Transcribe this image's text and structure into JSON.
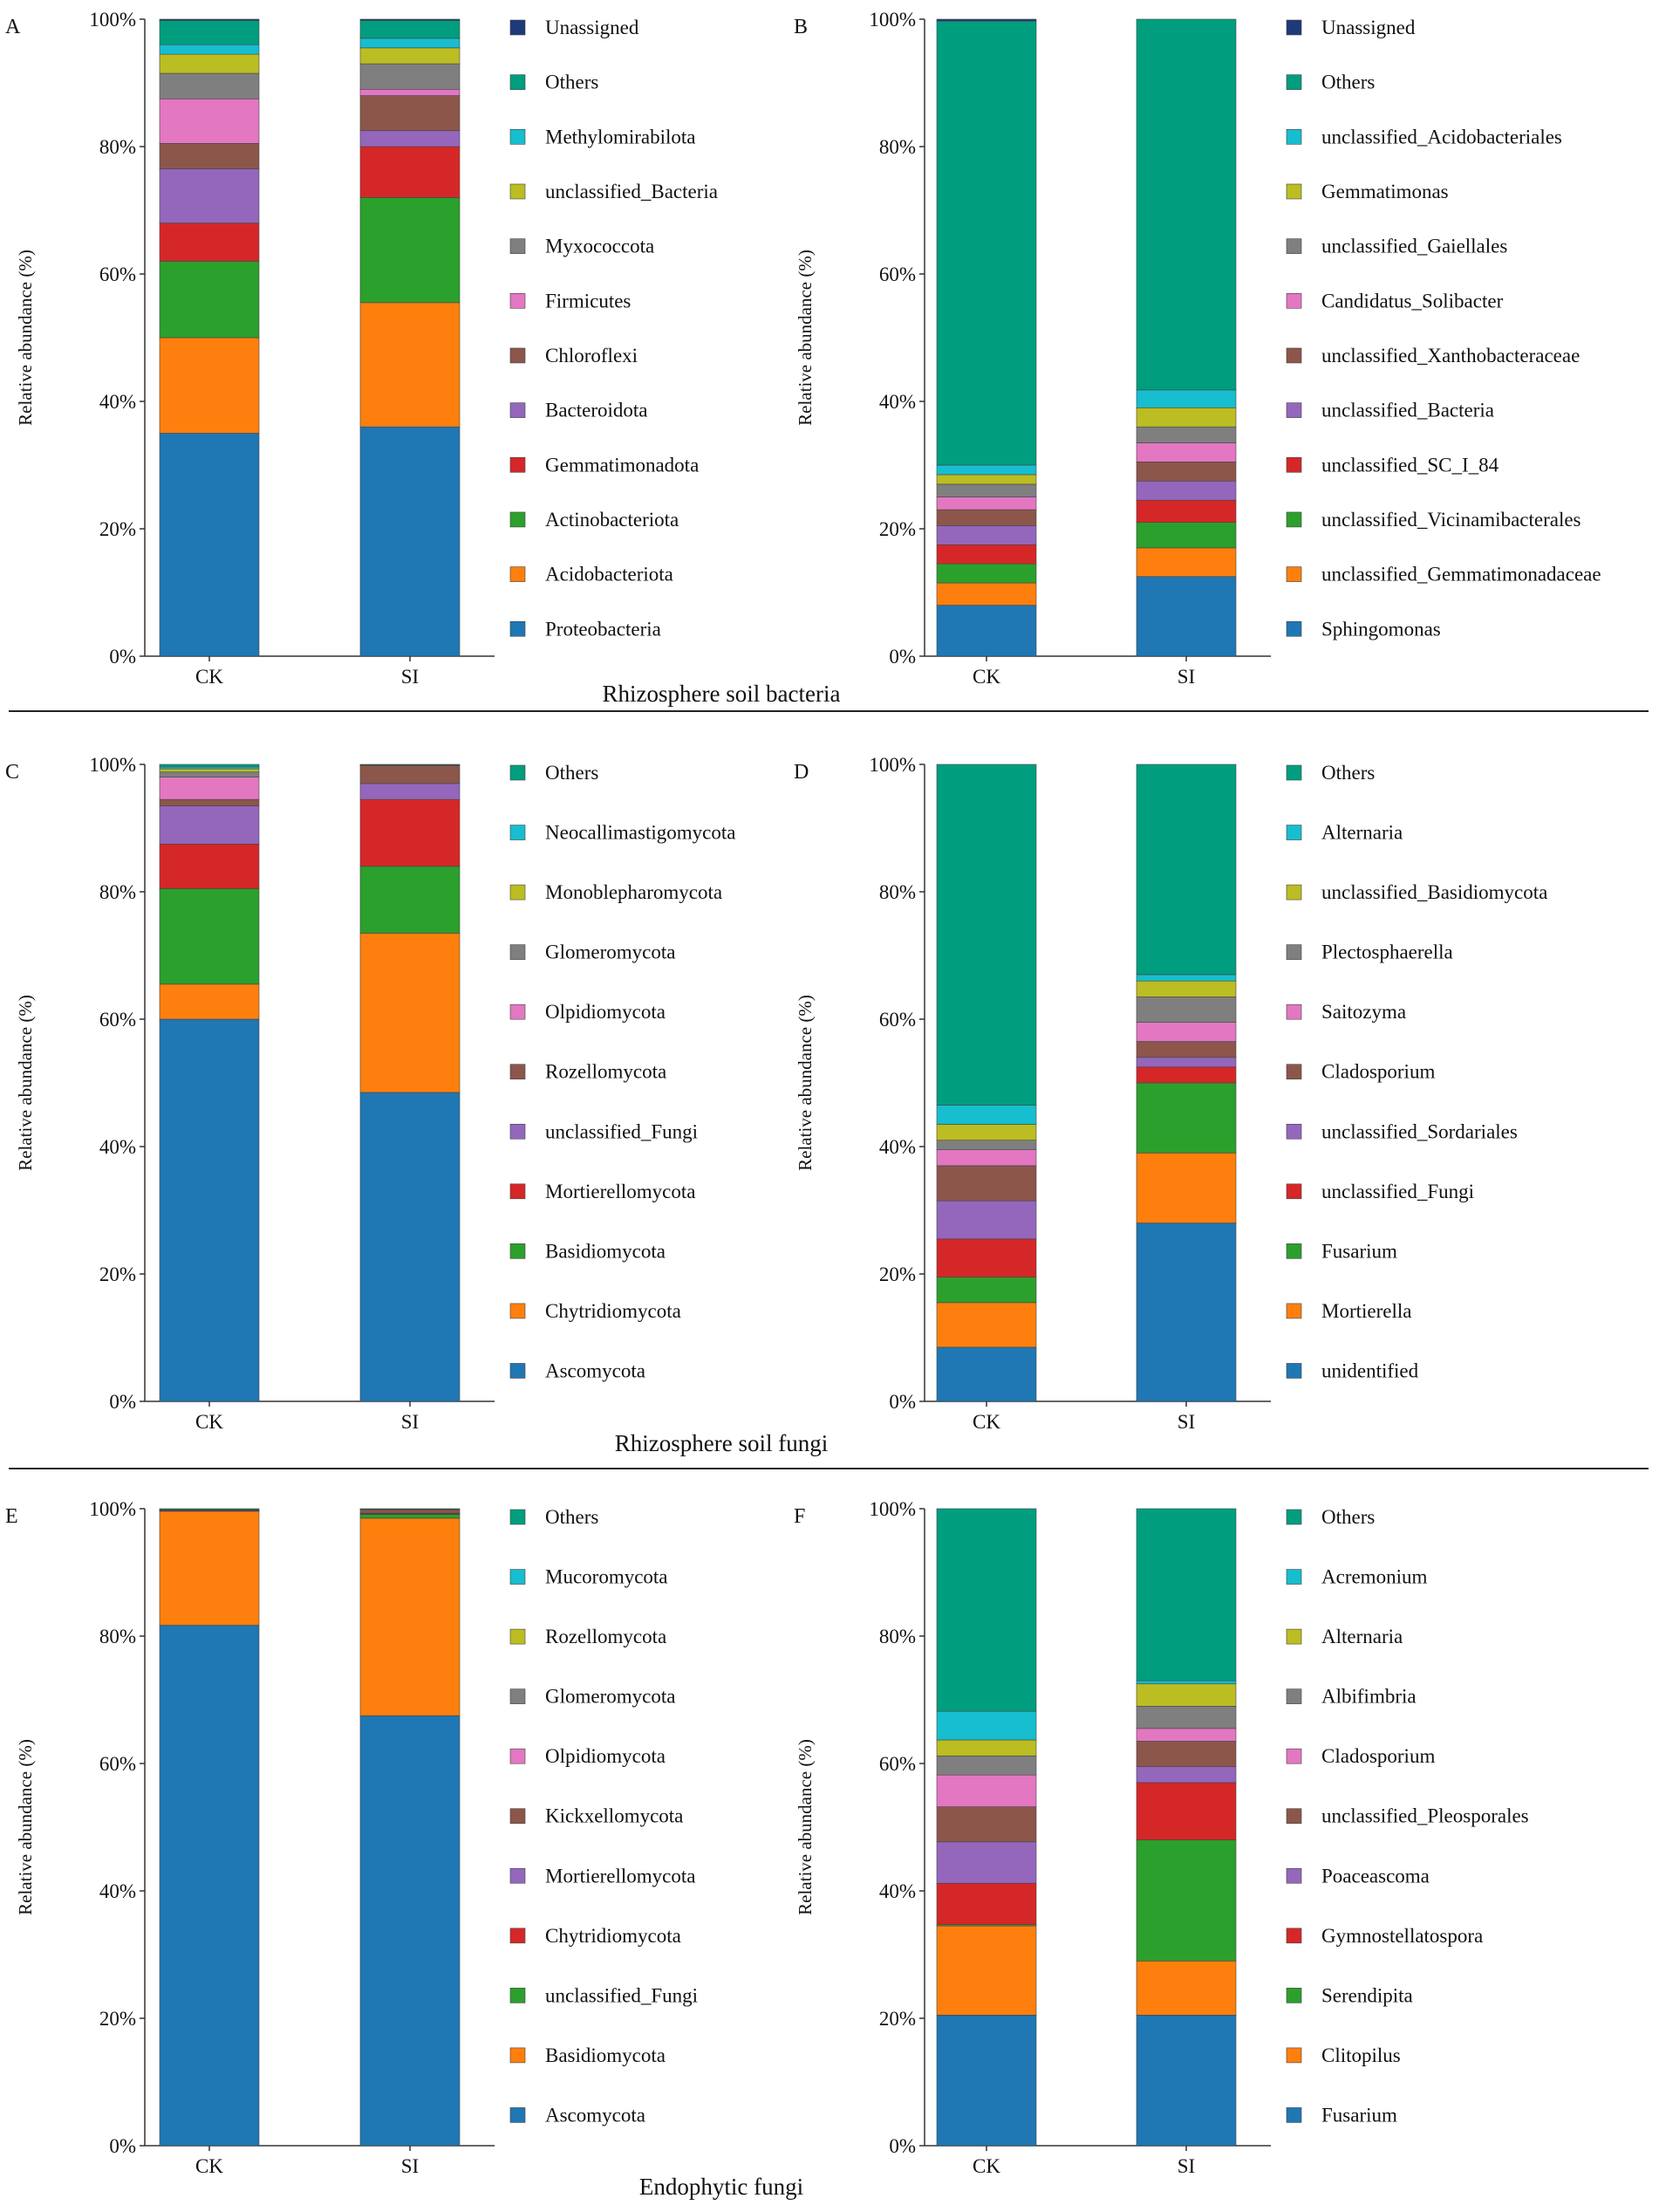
{
  "colors": [
    "#1f77b4",
    "#ff7f0e",
    "#2ca02c",
    "#d62728",
    "#9467bd",
    "#8c564b",
    "#e377c2",
    "#7f7f7f",
    "#bcbd22",
    "#17becf",
    "#009e7f",
    "#1f3a7a"
  ],
  "section_titles": [
    "Rhizosphere soil bacteria",
    "Rhizosphere soil fungi",
    "Endophytic fungi"
  ],
  "chart_data": [
    {
      "type": "bar",
      "stacked": true,
      "panel": "A",
      "ylabel": "Relative abundance (%)",
      "yticks": [
        "0%",
        "20%",
        "40%",
        "60%",
        "80%",
        "100%"
      ],
      "ylim": [
        0,
        100
      ],
      "categories": [
        "CK",
        "SI"
      ],
      "series": [
        {
          "name": "Proteobacteria",
          "values": [
            35.0,
            36.0
          ]
        },
        {
          "name": "Acidobacteriota",
          "values": [
            15.0,
            19.5
          ]
        },
        {
          "name": "Actinobacteriota",
          "values": [
            12.0,
            16.5
          ]
        },
        {
          "name": "Gemmatimonadota",
          "values": [
            6.0,
            8.0
          ]
        },
        {
          "name": "Bacteroidota",
          "values": [
            8.5,
            2.5
          ]
        },
        {
          "name": "Chloroflexi",
          "values": [
            4.0,
            5.5
          ]
        },
        {
          "name": "Firmicutes",
          "values": [
            7.0,
            1.0
          ]
        },
        {
          "name": "Myxococcota",
          "values": [
            4.0,
            4.0
          ]
        },
        {
          "name": "unclassified_Bacteria",
          "values": [
            3.0,
            2.5
          ]
        },
        {
          "name": "Methylomirabilota",
          "values": [
            1.5,
            1.5
          ]
        },
        {
          "name": "Others",
          "values": [
            3.8,
            2.8
          ]
        },
        {
          "name": "Unassigned",
          "values": [
            0.2,
            0.2
          ]
        }
      ]
    },
    {
      "type": "bar",
      "stacked": true,
      "panel": "B",
      "ylabel": "Relative abundance (%)",
      "yticks": [
        "0%",
        "20%",
        "40%",
        "60%",
        "80%",
        "100%"
      ],
      "ylim": [
        0,
        100
      ],
      "categories": [
        "CK",
        "SI"
      ],
      "series": [
        {
          "name": "Sphingomonas",
          "values": [
            8.0,
            12.5
          ]
        },
        {
          "name": "unclassified_Gemmatimonadaceae",
          "values": [
            3.5,
            4.5
          ]
        },
        {
          "name": "unclassified_Vicinamibacterales",
          "values": [
            3.0,
            4.0
          ]
        },
        {
          "name": "unclassified_SC_I_84",
          "values": [
            3.0,
            3.5
          ]
        },
        {
          "name": "unclassified_Bacteria",
          "values": [
            3.0,
            3.0
          ]
        },
        {
          "name": "unclassified_Xanthobacteraceae",
          "values": [
            2.5,
            3.0
          ]
        },
        {
          "name": "Candidatus_Solibacter",
          "values": [
            2.0,
            3.0
          ]
        },
        {
          "name": "unclassified_Gaiellales",
          "values": [
            2.0,
            2.5
          ]
        },
        {
          "name": "Gemmatimonas",
          "values": [
            1.5,
            3.0
          ]
        },
        {
          "name": "unclassified_Acidobacteriales",
          "values": [
            1.5,
            2.8
          ]
        },
        {
          "name": "Others",
          "values": [
            69.7,
            58.2
          ]
        },
        {
          "name": "Unassigned",
          "values": [
            0.3,
            0.0
          ]
        }
      ]
    },
    {
      "type": "bar",
      "stacked": true,
      "panel": "C",
      "ylabel": "Relative abundance (%)",
      "yticks": [
        "0%",
        "20%",
        "40%",
        "60%",
        "80%",
        "100%"
      ],
      "ylim": [
        0,
        100
      ],
      "categories": [
        "CK",
        "SI"
      ],
      "series": [
        {
          "name": "Ascomycota",
          "values": [
            60.0,
            48.5
          ]
        },
        {
          "name": "Chytridiomycota",
          "values": [
            5.5,
            25.0
          ]
        },
        {
          "name": "Basidiomycota",
          "values": [
            15.0,
            10.5
          ]
        },
        {
          "name": "Mortierellomycota",
          "values": [
            7.0,
            10.5
          ]
        },
        {
          "name": "unclassified_Fungi",
          "values": [
            6.0,
            2.5
          ]
        },
        {
          "name": "Rozellomycota",
          "values": [
            1.0,
            2.8
          ]
        },
        {
          "name": "Olpidiomycota",
          "values": [
            3.5,
            0.0
          ]
        },
        {
          "name": "Glomeromycota",
          "values": [
            0.8,
            0.1
          ]
        },
        {
          "name": "Monoblepharomycota",
          "values": [
            0.5,
            0.0
          ]
        },
        {
          "name": "Neocallimastigomycota",
          "values": [
            0.3,
            0.0
          ]
        },
        {
          "name": "Others",
          "values": [
            0.4,
            0.1
          ]
        }
      ]
    },
    {
      "type": "bar",
      "stacked": true,
      "panel": "D",
      "ylabel": "Relative abundance (%)",
      "yticks": [
        "0%",
        "20%",
        "40%",
        "60%",
        "80%",
        "100%"
      ],
      "ylim": [
        0,
        100
      ],
      "categories": [
        "CK",
        "SI"
      ],
      "series": [
        {
          "name": "unidentified",
          "values": [
            8.5,
            28.0
          ]
        },
        {
          "name": "Mortierella",
          "values": [
            7.0,
            11.0
          ]
        },
        {
          "name": "Fusarium",
          "values": [
            4.0,
            11.0
          ]
        },
        {
          "name": "unclassified_Fungi",
          "values": [
            6.0,
            2.5
          ]
        },
        {
          "name": "unclassified_Sordariales",
          "values": [
            6.0,
            1.5
          ]
        },
        {
          "name": "Cladosporium",
          "values": [
            5.5,
            2.5
          ]
        },
        {
          "name": "Saitozyma",
          "values": [
            2.5,
            3.0
          ]
        },
        {
          "name": "Plectosphaerella",
          "values": [
            1.5,
            4.0
          ]
        },
        {
          "name": "unclassified_Basidiomycota",
          "values": [
            2.5,
            2.5
          ]
        },
        {
          "name": "Alternaria",
          "values": [
            3.0,
            1.0
          ]
        },
        {
          "name": "Others",
          "values": [
            53.5,
            33.0
          ]
        }
      ]
    },
    {
      "type": "bar",
      "stacked": true,
      "panel": "E",
      "ylabel": "Relative abundance (%)",
      "yticks": [
        "0%",
        "20%",
        "40%",
        "60%",
        "80%",
        "100%"
      ],
      "ylim": [
        0,
        100
      ],
      "categories": [
        "CK",
        "SI"
      ],
      "series": [
        {
          "name": "Ascomycota",
          "values": [
            81.7,
            67.5
          ]
        },
        {
          "name": "Basidiomycota",
          "values": [
            17.9,
            31.0
          ]
        },
        {
          "name": "unclassified_Fungi",
          "values": [
            0.1,
            0.6
          ]
        },
        {
          "name": "Chytridiomycota",
          "values": [
            0.05,
            0.1
          ]
        },
        {
          "name": "Mortierellomycota",
          "values": [
            0.05,
            0.1
          ]
        },
        {
          "name": "Kickxellomycota",
          "values": [
            0.05,
            0.5
          ]
        },
        {
          "name": "Olpidiomycota",
          "values": [
            0.0,
            0.0
          ]
        },
        {
          "name": "Glomeromycota",
          "values": [
            0.0,
            0.0
          ]
        },
        {
          "name": "Rozellomycota",
          "values": [
            0.0,
            0.1
          ]
        },
        {
          "name": "Mucoromycota",
          "values": [
            0.0,
            0.0
          ]
        },
        {
          "name": "Others",
          "values": [
            0.15,
            0.1
          ]
        }
      ]
    },
    {
      "type": "bar",
      "stacked": true,
      "panel": "F",
      "ylabel": "Relative abundance (%)",
      "yticks": [
        "0%",
        "20%",
        "40%",
        "60%",
        "80%",
        "100%"
      ],
      "ylim": [
        0,
        100
      ],
      "categories": [
        "CK",
        "SI"
      ],
      "series": [
        {
          "name": "Fusarium",
          "values": [
            20.5,
            20.5
          ]
        },
        {
          "name": "Clitopilus",
          "values": [
            14.0,
            8.5
          ]
        },
        {
          "name": "Serendipita",
          "values": [
            0.2,
            19.0
          ]
        },
        {
          "name": "Gymnostellatospora",
          "values": [
            6.5,
            9.0
          ]
        },
        {
          "name": "Poaceascoma",
          "values": [
            6.5,
            2.5
          ]
        },
        {
          "name": "unclassified_Pleosporales",
          "values": [
            5.5,
            4.0
          ]
        },
        {
          "name": "Cladosporium",
          "values": [
            5.0,
            2.0
          ]
        },
        {
          "name": "Albifimbria",
          "values": [
            3.0,
            3.5
          ]
        },
        {
          "name": "Alternaria",
          "values": [
            2.5,
            3.5
          ]
        },
        {
          "name": "Acremonium",
          "values": [
            4.5,
            0.5
          ]
        },
        {
          "name": "Others",
          "values": [
            31.8,
            27.0
          ]
        }
      ]
    }
  ]
}
